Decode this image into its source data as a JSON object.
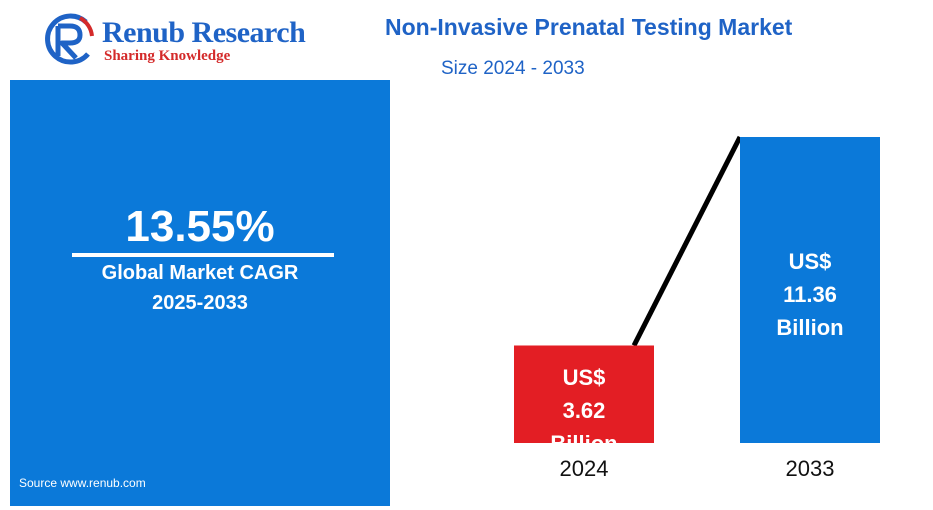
{
  "logo": {
    "name": "Renub Research",
    "tagline": "Sharing Knowledge"
  },
  "header": {
    "title": "Non-Invasive Prenatal Testing Market",
    "subtitle": "Size 2024 - 2033"
  },
  "cagr_panel": {
    "value": "13.55%",
    "label": "Global Market CAGR",
    "period": "2025-2033",
    "source": "Source  www.renub.com"
  },
  "colors": {
    "brand_blue": "#1f63c6",
    "panel_blue": "#0b79d9",
    "bar_2024": "#e31e24",
    "bar_2033": "#0b79d9",
    "trend_line": "#000000"
  },
  "chart_data": {
    "type": "bar",
    "title": "Non-Invasive Prenatal Testing Market",
    "subtitle": "Size 2024 - 2033",
    "categories": [
      "2024",
      "2033"
    ],
    "values": [
      3.62,
      11.36
    ],
    "unit": "US$ Billion",
    "labels": [
      [
        "US$",
        "3.62",
        "Billion"
      ],
      [
        "US$",
        "11.36",
        "Billion"
      ]
    ],
    "ylim": [
      0,
      11.36
    ],
    "grid": false,
    "legend": "none"
  }
}
